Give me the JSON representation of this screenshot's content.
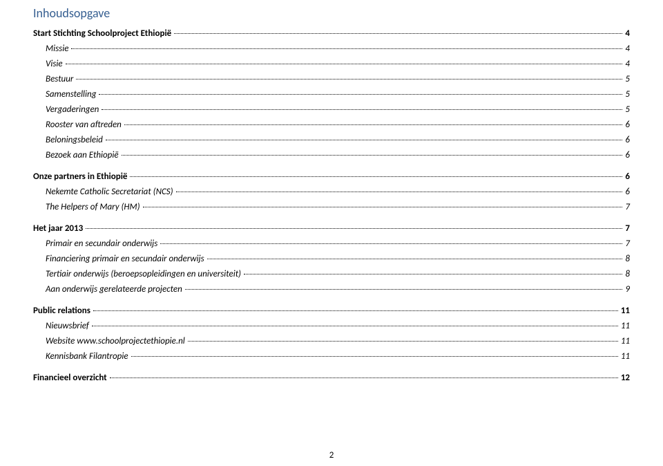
{
  "title": "Inhoudsopgave",
  "page_number": "2",
  "text_color": "#000000",
  "title_color": "#365f91",
  "background_color": "#ffffff",
  "fonts": {
    "body_family": "Calibri",
    "title_size_pt": 14,
    "body_size_pt": 10
  },
  "toc": [
    {
      "label": "Start Stichting Schoolproject Ethiopië",
      "page": "4",
      "level": 1
    },
    {
      "label": "Missie",
      "page": "4",
      "level": 2
    },
    {
      "label": "Visie",
      "page": "4",
      "level": 2
    },
    {
      "label": "Bestuur",
      "page": "5",
      "level": 2
    },
    {
      "label": "Samenstelling",
      "page": "5",
      "level": 2
    },
    {
      "label": "Vergaderingen",
      "page": "5",
      "level": 2
    },
    {
      "label": "Rooster van aftreden",
      "page": "6",
      "level": 2
    },
    {
      "label": "Beloningsbeleid",
      "page": "6",
      "level": 2
    },
    {
      "label": "Bezoek aan Ethiopië",
      "page": "6",
      "level": 2
    },
    {
      "label": "Onze partners in Ethiopië",
      "page": "6",
      "level": 1
    },
    {
      "label": "Nekemte Catholic Secretariat (NCS)",
      "page": "6",
      "level": 2
    },
    {
      "label": "The Helpers of Mary (HM)",
      "page": "7",
      "level": 2
    },
    {
      "label": "Het jaar 2013",
      "page": "7",
      "level": 1
    },
    {
      "label": "Primair en secundair onderwijs",
      "page": "7",
      "level": 2
    },
    {
      "label": "Financiering primair en secundair onderwijs",
      "page": "8",
      "level": 2
    },
    {
      "label": "Tertiair onderwijs (beroepsopleidingen en universiteit)",
      "page": "8",
      "level": 2
    },
    {
      "label": "Aan onderwijs gerelateerde projecten",
      "page": "9",
      "level": 2
    },
    {
      "label": "Public relations",
      "page": "11",
      "level": 1
    },
    {
      "label": "Nieuwsbrief",
      "page": "11",
      "level": 2
    },
    {
      "label": "Website www.schoolprojectethiopie.nl",
      "page": "11",
      "level": 2
    },
    {
      "label": "Kennisbank Filantropie",
      "page": "11",
      "level": 2
    },
    {
      "label": "Financieel overzicht",
      "page": "12",
      "level": 1
    }
  ]
}
